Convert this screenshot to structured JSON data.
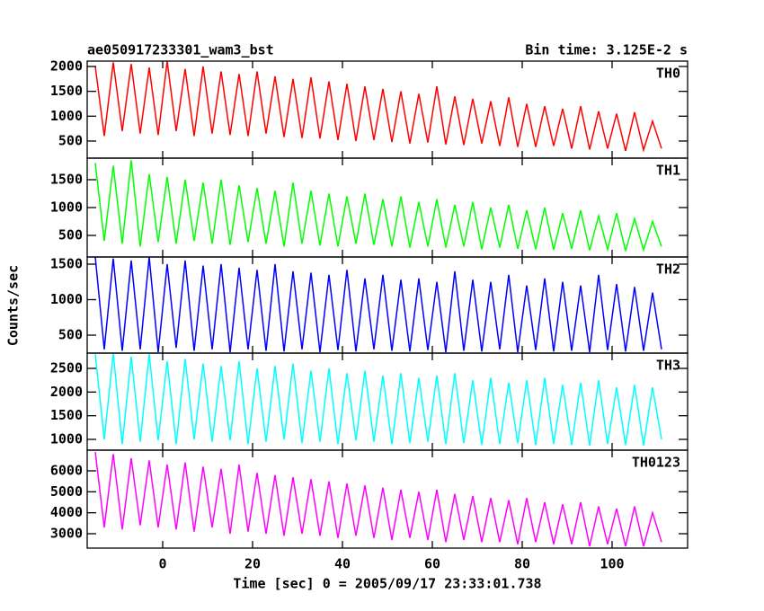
{
  "chart_data": {
    "type": "line",
    "title": "ae050917233301_wam3_bst",
    "subtitle": "Bin time: 3.125E-2 s",
    "x_label": "Time [sec] 0 = 2005/09/17 23:33:01.738",
    "y_label": "Counts/sec",
    "xlim": [
      -16.8,
      116.8
    ],
    "xticks": [
      0,
      20,
      40,
      60,
      80,
      100
    ],
    "x": [
      -15,
      -13,
      -11,
      -9,
      -7,
      -5,
      -3,
      -1,
      1,
      3,
      5,
      7,
      9,
      11,
      13,
      15,
      17,
      19,
      21,
      23,
      25,
      27,
      29,
      31,
      33,
      35,
      37,
      39,
      41,
      43,
      45,
      47,
      49,
      51,
      53,
      55,
      57,
      59,
      61,
      63,
      65,
      67,
      69,
      71,
      73,
      75,
      77,
      79,
      81,
      83,
      85,
      87,
      89,
      91,
      93,
      95,
      97,
      99,
      101,
      103,
      105,
      107,
      109,
      111
    ],
    "series": [
      {
        "name": "TH0",
        "color": "#ff0000",
        "ylim": [
          156,
          2108
        ],
        "yticks": [
          500,
          1000,
          1500,
          2000
        ],
        "values": [
          2000,
          600,
          2080,
          700,
          2050,
          650,
          1980,
          620,
          2100,
          700,
          1950,
          600,
          2000,
          650,
          1900,
          620,
          1850,
          600,
          1900,
          650,
          1800,
          580,
          1750,
          560,
          1780,
          550,
          1700,
          520,
          1650,
          500,
          1600,
          520,
          1550,
          480,
          1500,
          450,
          1450,
          470,
          1600,
          430,
          1400,
          420,
          1350,
          450,
          1300,
          400,
          1380,
          380,
          1250,
          380,
          1200,
          400,
          1150,
          350,
          1200,
          330,
          1100,
          350,
          1050,
          300,
          1080,
          320,
          900,
          350
        ]
      },
      {
        "name": "TH1",
        "color": "#00ff00",
        "ylim": [
          113,
          1887
        ],
        "yticks": [
          500,
          1000,
          1500
        ],
        "values": [
          1800,
          400,
          1750,
          350,
          1850,
          300,
          1600,
          380,
          1550,
          350,
          1500,
          400,
          1450,
          350,
          1500,
          330,
          1400,
          380,
          1350,
          350,
          1300,
          300,
          1450,
          350,
          1300,
          320,
          1250,
          300,
          1200,
          350,
          1250,
          330,
          1150,
          300,
          1200,
          280,
          1100,
          300,
          1150,
          280,
          1050,
          300,
          1100,
          250,
          1000,
          280,
          1050,
          260,
          950,
          250,
          1000,
          240,
          900,
          260,
          950,
          230,
          850,
          250,
          900,
          220,
          800,
          240,
          750,
          300
        ]
      },
      {
        "name": "TH2",
        "color": "#0000ff",
        "ylim": [
          247,
          1601
        ],
        "yticks": [
          500,
          1000,
          1500
        ],
        "values": [
          1600,
          300,
          1580,
          280,
          1550,
          300,
          1600,
          260,
          1500,
          320,
          1550,
          280,
          1480,
          300,
          1500,
          260,
          1450,
          300,
          1420,
          280,
          1500,
          270,
          1400,
          300,
          1380,
          260,
          1350,
          290,
          1420,
          270,
          1300,
          300,
          1350,
          280,
          1280,
          270,
          1300,
          290,
          1250,
          260,
          1400,
          280,
          1280,
          270,
          1250,
          300,
          1350,
          260,
          1200,
          290,
          1300,
          270,
          1250,
          280,
          1200,
          260,
          1350,
          290,
          1220,
          270,
          1180,
          280,
          1100,
          300
        ]
      },
      {
        "name": "TH3",
        "color": "#00ffff",
        "ylim": [
          772,
          2823
        ],
        "yticks": [
          1000,
          1500,
          2000,
          2500
        ],
        "values": [
          2800,
          1000,
          2820,
          900,
          2750,
          950,
          2800,
          980,
          2650,
          900,
          2700,
          1000,
          2600,
          950,
          2550,
          980,
          2650,
          900,
          2500,
          950,
          2550,
          1000,
          2600,
          920,
          2450,
          950,
          2500,
          900,
          2400,
          980,
          2450,
          950,
          2350,
          900,
          2400,
          920,
          2300,
          950,
          2350,
          900,
          2400,
          920,
          2250,
          880,
          2300,
          900,
          2200,
          920,
          2250,
          880,
          2300,
          900,
          2150,
          880,
          2200,
          870,
          2250,
          900,
          2100,
          880,
          2150,
          870,
          2100,
          1000
        ]
      },
      {
        "name": "TH0123",
        "color": "#ff00ff",
        "ylim": [
          2314,
          6986
        ],
        "yticks": [
          3000,
          4000,
          5000,
          6000
        ],
        "values": [
          6900,
          3300,
          6800,
          3200,
          6600,
          3400,
          6500,
          3300,
          6300,
          3200,
          6400,
          3100,
          6200,
          3300,
          6100,
          3000,
          6300,
          3100,
          5900,
          3000,
          5800,
          2900,
          5700,
          3000,
          5600,
          2900,
          5500,
          2800,
          5400,
          2900,
          5300,
          2800,
          5200,
          2700,
          5100,
          2800,
          5000,
          2700,
          5100,
          2600,
          4900,
          2700,
          4800,
          2600,
          4700,
          2600,
          4600,
          2500,
          4700,
          2600,
          4500,
          2500,
          4400,
          2500,
          4500,
          2400,
          4300,
          2500,
          4200,
          2400,
          4300,
          2400,
          4000,
          2600
        ]
      }
    ]
  }
}
